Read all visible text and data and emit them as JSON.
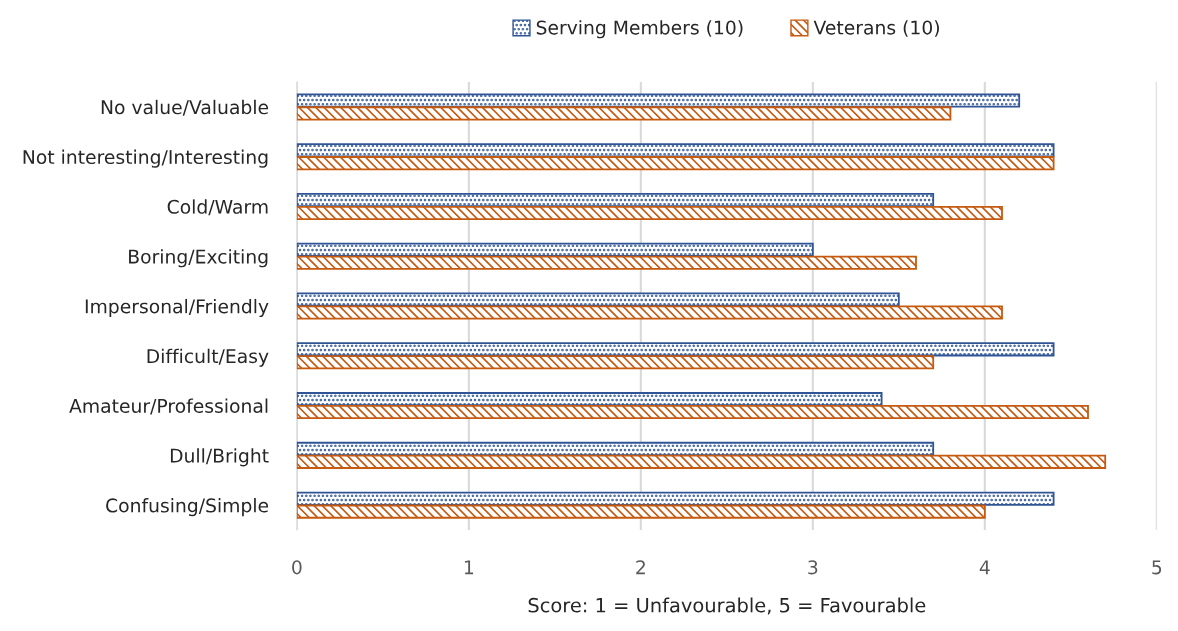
{
  "chart_data": {
    "type": "bar",
    "orientation": "horizontal",
    "xlabel": "Score: 1 = Unfavourable, 5 = Favourable",
    "categories": [
      "No value/Valuable",
      "Not interesting/Interesting",
      "Cold/Warm",
      "Boring/Exciting",
      "Impersonal/Friendly",
      "Difficult/Easy",
      "Amateur/Professional",
      "Dull/Bright",
      "Confusing/Simple"
    ],
    "series": [
      {
        "name": "Serving Members (10)",
        "color": "#2f5597",
        "values": [
          4.2,
          4.4,
          3.7,
          3.0,
          3.5,
          4.4,
          3.4,
          3.7,
          4.4
        ]
      },
      {
        "name": "Veterans (10)",
        "color": "#c55a11",
        "values": [
          3.8,
          4.4,
          4.1,
          3.6,
          4.1,
          3.7,
          4.6,
          4.7,
          4.0
        ]
      }
    ],
    "xlim": [
      0,
      5
    ],
    "xticks": [
      0,
      1,
      2,
      3,
      4,
      5
    ],
    "grid": "x",
    "legend": "top"
  }
}
